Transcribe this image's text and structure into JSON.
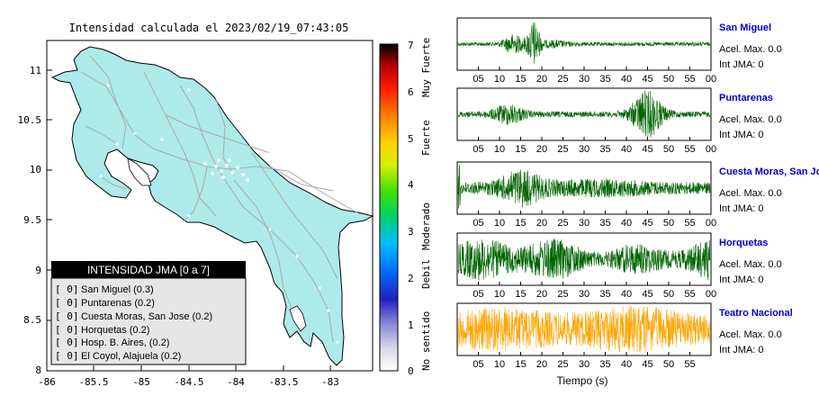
{
  "chart_data": [
    {
      "type": "heatmap",
      "title": "Intensidad calculada el 2023/02/19_07:43:05",
      "x_ticks": [
        "-86",
        "-85.5",
        "-85",
        "-84.5",
        "-84",
        "-83.5",
        "-83"
      ],
      "y_ticks": [
        "11",
        "10.5",
        "10",
        "9.5",
        "9",
        "8.5",
        "8"
      ],
      "xlim": [
        -86,
        -82.8
      ],
      "ylim": [
        8,
        11.3
      ],
      "colorbar": {
        "ticks": [
          "0",
          "1",
          "2",
          "3",
          "4",
          "5",
          "6",
          "7"
        ],
        "labels": [
          "No sentido",
          "Debil",
          "Moderado",
          "Fuerte",
          "Muy Fuerte"
        ],
        "range": [
          0,
          7
        ]
      },
      "legend": {
        "title": "INTENSIDAD JMA [0 a 7]",
        "items": [
          {
            "value": "[ 0]",
            "name": "San Miguel (0.3)"
          },
          {
            "value": "[ 0]",
            "name": "Puntarenas (0.2)"
          },
          {
            "value": "[ 0]",
            "name": "Cuesta Moras, San Jose (0.2)"
          },
          {
            "value": "[ 0]",
            "name": "Horquetas (0.2)"
          },
          {
            "value": "[ 0]",
            "name": "Hosp. B. Aires, (0.2)"
          },
          {
            "value": "[ 0]",
            "name": "El Coyol, Alajuela (0.2)"
          }
        ],
        "placement": "bottom-left"
      }
    },
    {
      "type": "line",
      "xlabel": "Tiempo (s)",
      "x_ticks": [
        "05",
        "10",
        "15",
        "20",
        "25",
        "30",
        "35",
        "40",
        "45",
        "50",
        "55",
        "00"
      ],
      "last_x_ticks": [
        "05",
        "10",
        "15",
        "20",
        "25",
        "30",
        "35",
        "40",
        "45",
        "50",
        "55"
      ],
      "series": [
        {
          "name": "San Miguel",
          "acel_label": "Acel. Max. 0.0",
          "int_label": "Int JMA: 0",
          "color": "#006400"
        },
        {
          "name": "Puntarenas",
          "acel_label": "Acel. Max. 0.0",
          "int_label": "Int JMA: 0",
          "color": "#006400"
        },
        {
          "name": "Cuesta Moras, San Jose",
          "acel_label": "Acel. Max. 0.0",
          "int_label": "Int JMA: 0",
          "color": "#006400"
        },
        {
          "name": "Horquetas",
          "acel_label": "Acel. Max. 0.0",
          "int_label": "Int JMA: 0",
          "color": "#006400"
        },
        {
          "name": "Teatro Nacional",
          "acel_label": "Acel. Max. 0.0",
          "int_label": "Int JMA: 0",
          "color": "#ffa500"
        }
      ]
    }
  ],
  "colors": {
    "land": "#aeeaea",
    "trace_green": "#006400",
    "trace_orange": "#ffa500",
    "station_name": "#0000cc"
  }
}
